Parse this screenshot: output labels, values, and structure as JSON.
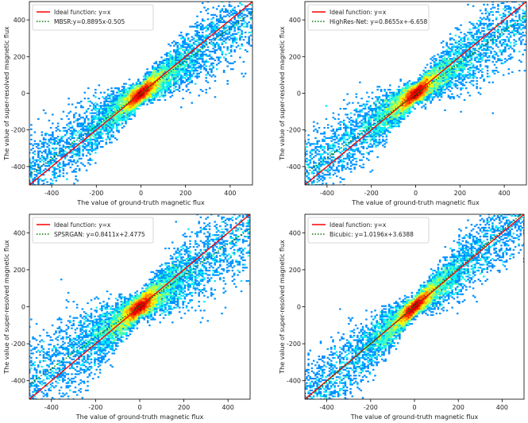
{
  "chart_data": [
    {
      "type": "scatter",
      "xlabel": "The value of ground-truth magnetic flux",
      "ylabel": "The value of super-resolved magnetic flux",
      "xlim": [
        -500,
        500
      ],
      "ylim": [
        -500,
        500
      ],
      "xticks": [
        -400,
        -200,
        0,
        200,
        400
      ],
      "yticks": [
        -400,
        -200,
        0,
        200,
        400
      ],
      "grid": false,
      "legend_position": "top-left",
      "series": [
        {
          "name": "Ideal function: y=x",
          "kind": "line",
          "style": "solid",
          "color": "#ff0000",
          "slope": 1,
          "intercept": 0
        },
        {
          "name": "MBSR:y=0.8895x-0.505",
          "kind": "line",
          "style": "dotted",
          "color": "#008000",
          "slope": 0.8895,
          "intercept": -0.505
        },
        {
          "name": "density",
          "kind": "heatmap-scatter",
          "colormap": "jet",
          "slope_center": 0.8895,
          "spread": 150
        }
      ]
    },
    {
      "type": "scatter",
      "xlabel": "The value of ground-truth magnetic flux",
      "ylabel": "The value of super-resolved magnetic flux",
      "xlim": [
        -500,
        500
      ],
      "ylim": [
        -500,
        500
      ],
      "xticks": [
        -400,
        -200,
        0,
        200,
        400
      ],
      "yticks": [
        -400,
        -200,
        0,
        200,
        400
      ],
      "grid": false,
      "legend_position": "top-left",
      "series": [
        {
          "name": "Ideal function: y=x",
          "kind": "line",
          "style": "solid",
          "color": "#ff0000",
          "slope": 1,
          "intercept": 0
        },
        {
          "name": "HighRes-Net: y=0.8655x+-6.658",
          "kind": "line",
          "style": "dotted",
          "color": "#008000",
          "slope": 0.8655,
          "intercept": -6.658
        },
        {
          "name": "density",
          "kind": "heatmap-scatter",
          "colormap": "jet",
          "slope_center": 0.8655,
          "spread": 150
        }
      ]
    },
    {
      "type": "scatter",
      "xlabel": "The value of ground-truth magnetic flux",
      "ylabel": "The value of super-resolved magnetic flux",
      "xlim": [
        -500,
        500
      ],
      "ylim": [
        -500,
        500
      ],
      "xticks": [
        -400,
        -200,
        0,
        200,
        400
      ],
      "yticks": [
        -400,
        -200,
        0,
        200,
        400
      ],
      "grid": false,
      "legend_position": "top-left",
      "series": [
        {
          "name": "Ideal function: y=x",
          "kind": "line",
          "style": "solid",
          "color": "#ff0000",
          "slope": 1,
          "intercept": 0
        },
        {
          "name": "SPSRGAN: y=0.8411x+2.4775",
          "kind": "line",
          "style": "dotted",
          "color": "#008000",
          "slope": 0.8411,
          "intercept": 2.4775
        },
        {
          "name": "density",
          "kind": "heatmap-scatter",
          "colormap": "jet",
          "slope_center": 0.8411,
          "spread": 170
        }
      ]
    },
    {
      "type": "scatter",
      "xlabel": "The value of ground-truth magnetic flux",
      "ylabel": "The value of super-resolved magnetic flux",
      "xlim": [
        -500,
        500
      ],
      "ylim": [
        -500,
        500
      ],
      "xticks": [
        -400,
        -200,
        0,
        200,
        400
      ],
      "yticks": [
        -400,
        -200,
        0,
        200,
        400
      ],
      "grid": false,
      "legend_position": "top-left",
      "series": [
        {
          "name": "Ideal function: y=x",
          "kind": "line",
          "style": "solid",
          "color": "#ff0000",
          "slope": 1,
          "intercept": 0
        },
        {
          "name": "Bicubic: y=1.0196x+3.6388",
          "kind": "line",
          "style": "dotted",
          "color": "#008000",
          "slope": 1.0196,
          "intercept": 3.6388
        },
        {
          "name": "density",
          "kind": "heatmap-scatter",
          "colormap": "jet",
          "slope_center": 1.0196,
          "spread": 140
        }
      ]
    }
  ]
}
